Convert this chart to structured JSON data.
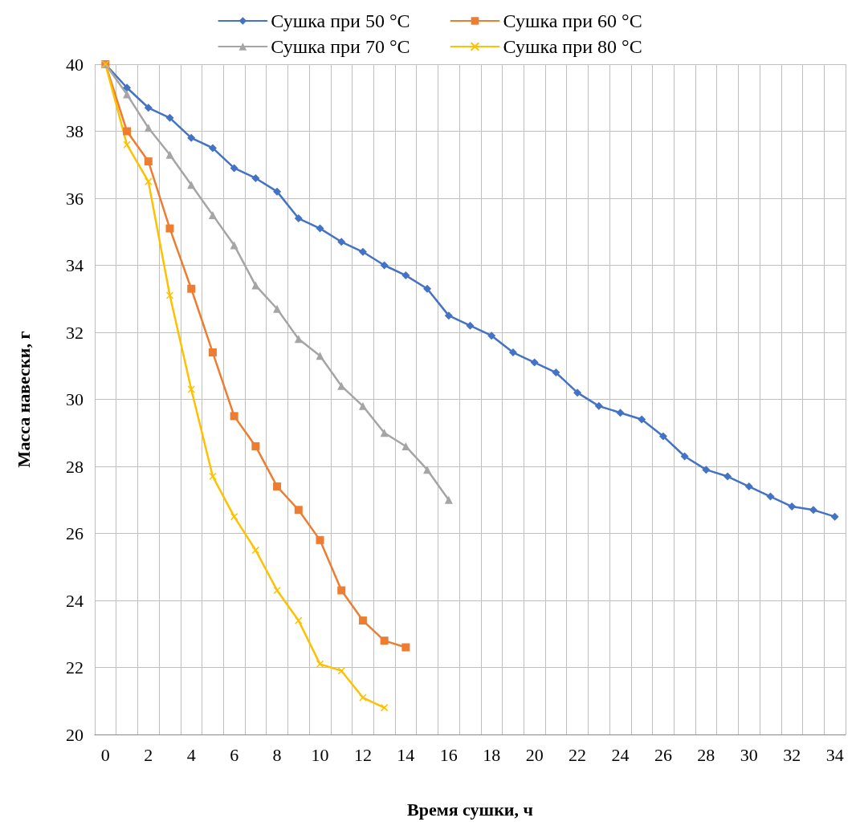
{
  "chart_data": {
    "type": "line",
    "xlabel": "Время сушки, ч",
    "ylabel": "Масса навески, г",
    "categories": [
      "0",
      null,
      "2",
      null,
      "4",
      null,
      "6",
      null,
      "8",
      null,
      "10",
      null,
      "12",
      null,
      "14",
      null,
      "16",
      null,
      "18",
      null,
      "20",
      null,
      "22",
      null,
      "24",
      null,
      "26",
      null,
      "28",
      null,
      "30",
      null,
      "32",
      null,
      "34"
    ],
    "series": [
      {
        "name": "Сушка при 50 °C",
        "color": "#4472c4",
        "marker": "diamond",
        "values": [
          40,
          39.3,
          38.7,
          38.4,
          37.8,
          37.5,
          36.9,
          36.6,
          36.2,
          35.4,
          35.1,
          34.7,
          34.4,
          34.0,
          33.7,
          33.3,
          32.5,
          32.2,
          31.9,
          31.4,
          31.1,
          30.8,
          30.2,
          29.8,
          29.6,
          29.4,
          28.9,
          28.3,
          27.9,
          27.7,
          27.4,
          27.1,
          26.8,
          26.7,
          26.5
        ]
      },
      {
        "name": "Сушка при 60 °C",
        "color": "#ed7d31",
        "marker": "square",
        "values": [
          40,
          38.0,
          37.1,
          35.1,
          33.3,
          31.4,
          29.5,
          28.6,
          27.4,
          26.7,
          25.8,
          24.3,
          23.4,
          22.8,
          22.6,
          null,
          null,
          null,
          null,
          null,
          null,
          null,
          null,
          null,
          null,
          null,
          null,
          null,
          null,
          null,
          null,
          null,
          null,
          null,
          null
        ]
      },
      {
        "name": "Сушка при 70 °C",
        "color": "#a5a5a5",
        "marker": "triangle",
        "values": [
          40,
          39.1,
          38.1,
          37.3,
          36.4,
          35.5,
          34.6,
          33.4,
          32.7,
          31.8,
          31.3,
          30.4,
          29.8,
          29.0,
          28.6,
          27.9,
          27.0,
          null,
          null,
          null,
          null,
          null,
          null,
          null,
          null,
          null,
          null,
          null,
          null,
          null,
          null,
          null,
          null,
          null,
          null
        ]
      },
      {
        "name": "Сушка при 80 °C",
        "color": "#ffc000",
        "marker": "cross",
        "values": [
          40,
          37.6,
          36.5,
          33.1,
          30.3,
          27.7,
          26.5,
          25.5,
          24.3,
          23.4,
          22.1,
          21.9,
          21.1,
          20.8,
          null,
          null,
          null,
          null,
          null,
          null,
          null,
          null,
          null,
          null,
          null,
          null,
          null,
          null,
          null,
          null,
          null,
          null,
          null,
          null,
          null
        ]
      }
    ],
    "ylim": [
      20,
      40
    ],
    "yticks": [
      20,
      22,
      24,
      26,
      28,
      30,
      32,
      34,
      36,
      38,
      40
    ],
    "grid": true,
    "legend": "top"
  }
}
